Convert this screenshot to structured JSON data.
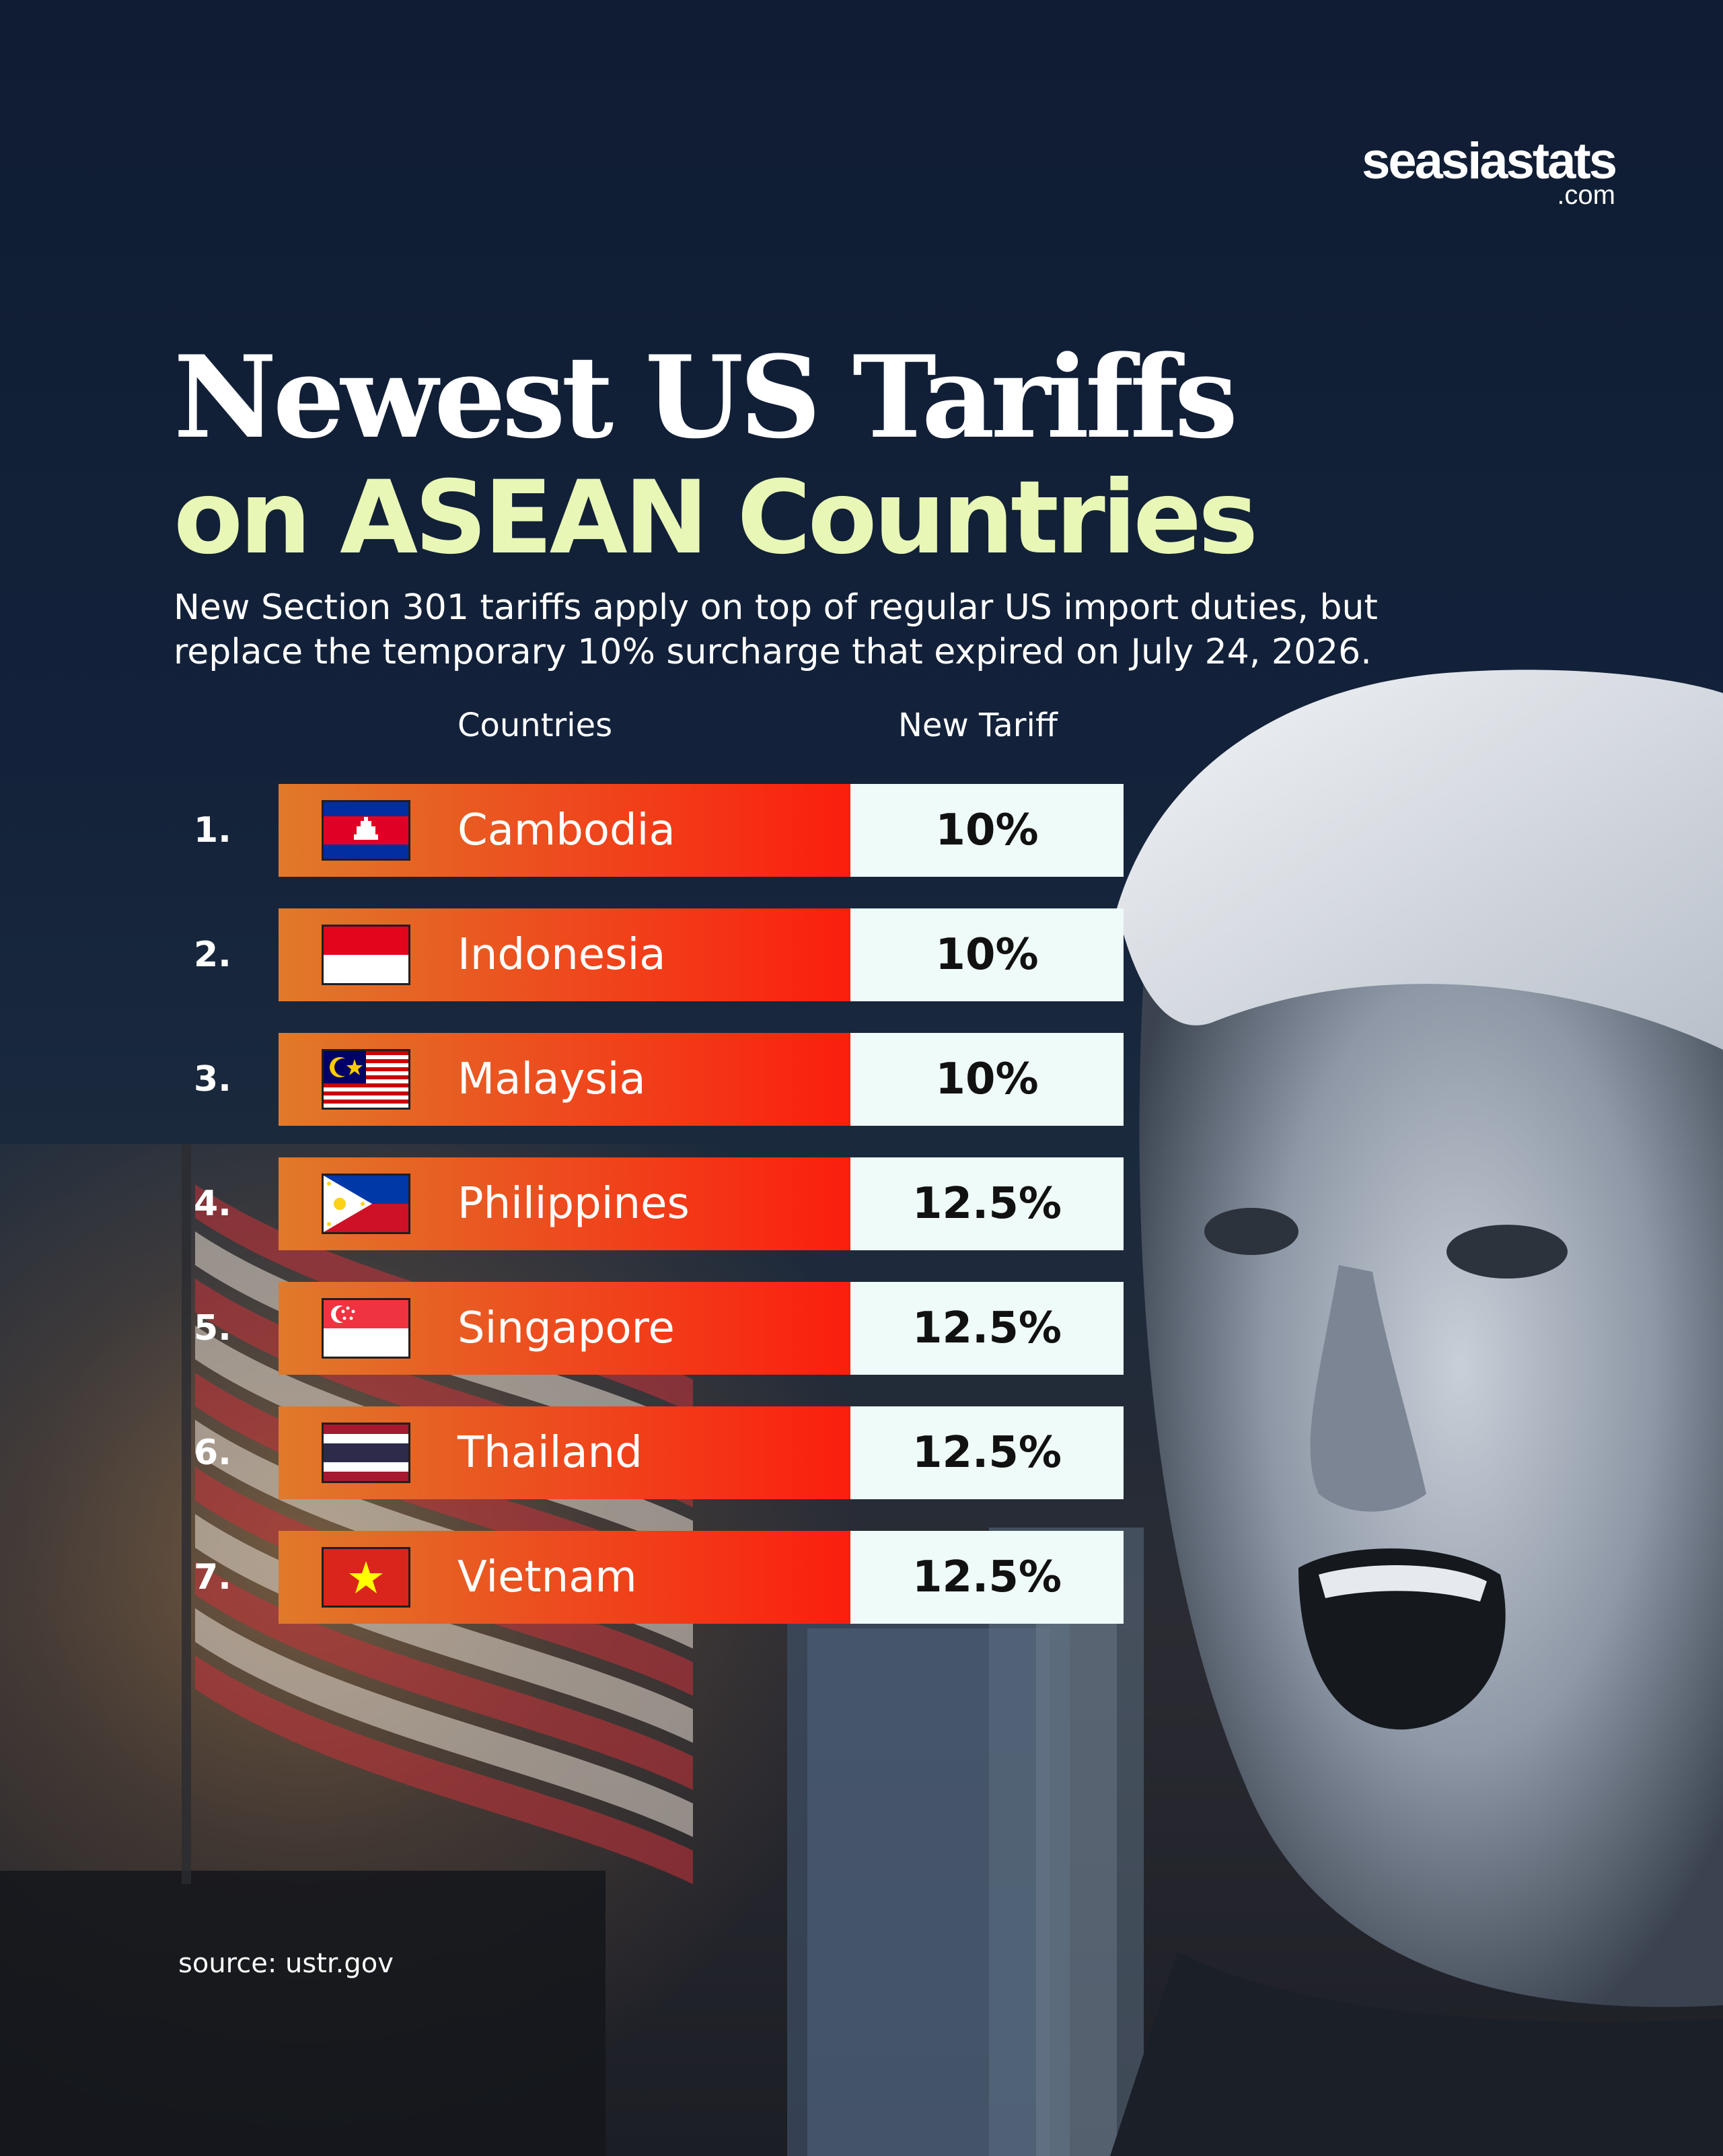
{
  "brand": {
    "name": "seasiastats",
    "tld": ".com"
  },
  "title_line1": "Newest US Tariffs",
  "title_line2": "on ASEAN Countries",
  "subtitle": "New Section 301 tariffs apply on top of regular US import duties, but replace the temporary 10% surcharge that expired on July 24, 2026.",
  "columns": {
    "countries": "Countries",
    "tariff": "New Tariff"
  },
  "rows": [
    {
      "rank": "1.",
      "country": "Cambodia",
      "tariff": "10%",
      "flag_icon": "cambodia-flag-icon"
    },
    {
      "rank": "2.",
      "country": "Indonesia",
      "tariff": "10%",
      "flag_icon": "indonesia-flag-icon"
    },
    {
      "rank": "3.",
      "country": "Malaysia",
      "tariff": "10%",
      "flag_icon": "malaysia-flag-icon"
    },
    {
      "rank": "4.",
      "country": "Philippines",
      "tariff": "12.5%",
      "flag_icon": "philippines-flag-icon"
    },
    {
      "rank": "5.",
      "country": "Singapore",
      "tariff": "12.5%",
      "flag_icon": "singapore-flag-icon"
    },
    {
      "rank": "6.",
      "country": "Thailand",
      "tariff": "12.5%",
      "flag_icon": "thailand-flag-icon"
    },
    {
      "rank": "7.",
      "country": "Vietnam",
      "tariff": "12.5%",
      "flag_icon": "vietnam-flag-icon"
    }
  ],
  "source": "source: ustr.gov",
  "colors": {
    "accent_green": "#e8f7b5",
    "bar_start": "#e07a2a",
    "bar_end": "#fb1e0e",
    "value_bg": "#effbf8",
    "background": "#13223a"
  }
}
